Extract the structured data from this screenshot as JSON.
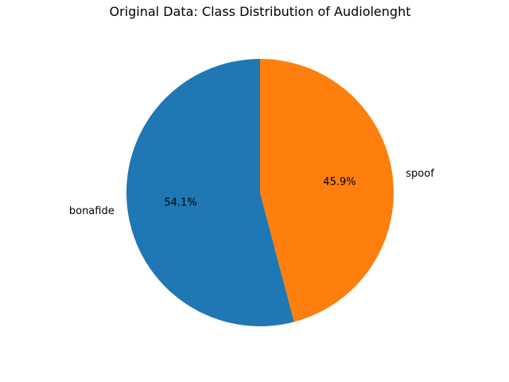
{
  "chart_data": {
    "type": "pie",
    "title": "Original Data: Class Distribution of Audiolenght",
    "categories": [
      "bonafide",
      "spoof"
    ],
    "values": [
      54.1,
      45.9
    ],
    "percent_labels": [
      "54.1%",
      "45.9%"
    ],
    "colors": [
      "#1f77b4",
      "#ff7f0e"
    ],
    "start_angle_deg": 90,
    "direction": "counterclockwise",
    "legend": "none"
  }
}
